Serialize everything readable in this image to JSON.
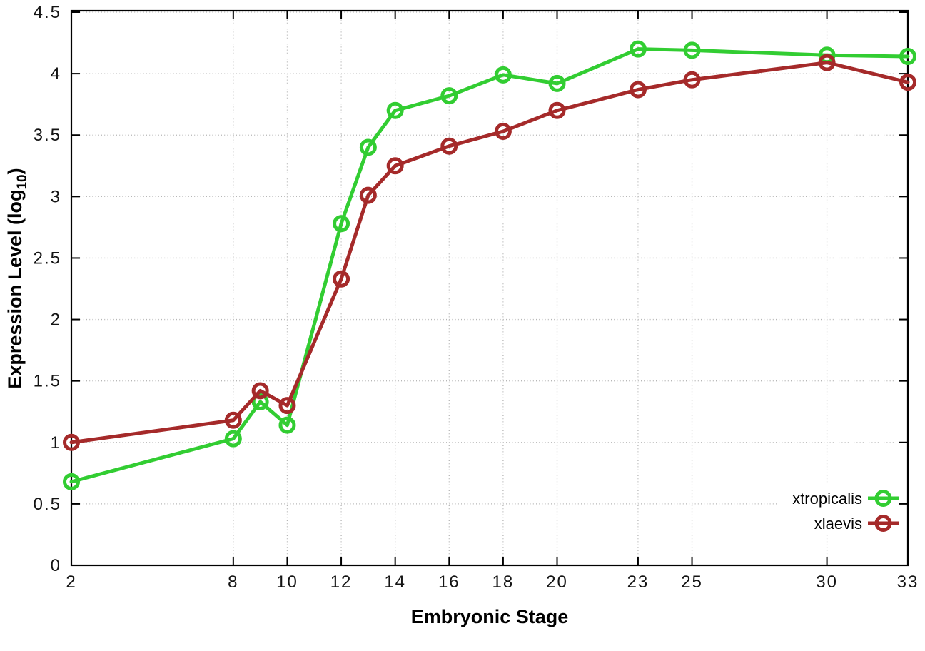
{
  "chart_data": {
    "type": "line",
    "title": "",
    "xlabel": "Embryonic Stage",
    "ylabel": "Expression Level (log10)",
    "ylabel_parts": {
      "pre": "Expression Level (log",
      "sub": "10",
      "post": ")"
    },
    "x": [
      2,
      8,
      9,
      10,
      12,
      13,
      14,
      16,
      18,
      20,
      23,
      25,
      30,
      33
    ],
    "xlim": [
      2,
      33
    ],
    "ylim": [
      0,
      4.54
    ],
    "xticks": [
      2,
      8,
      10,
      12,
      14,
      16,
      18,
      20,
      23,
      25,
      30,
      33
    ],
    "xtick_labels": [
      "2",
      "8",
      "10",
      "12",
      "14",
      "16",
      "18",
      "20",
      "23",
      "25",
      "30",
      "33"
    ],
    "yticks": [
      0,
      0.5,
      1,
      1.5,
      2,
      2.5,
      3,
      3.5,
      4,
      4.5
    ],
    "ytick_labels": [
      "0",
      "0.5",
      "1",
      "1.5",
      "2",
      "2.5",
      "3",
      "3.5",
      "4",
      "4.5"
    ],
    "grid": true,
    "grid_style": "dotted",
    "grid_color": "#b5b5b5",
    "frame_color": "#000000",
    "legend_position": "bottom-right-inside",
    "marker": "open-circle",
    "series": [
      {
        "name": "xtropicalis",
        "color": "#32cd32",
        "values": [
          0.68,
          1.03,
          1.33,
          1.14,
          2.78,
          3.4,
          3.7,
          3.82,
          3.99,
          3.92,
          4.2,
          4.19,
          4.15,
          4.14
        ]
      },
      {
        "name": "xlaevis",
        "color": "#a52a2a",
        "values": [
          1.0,
          1.18,
          1.42,
          1.3,
          2.33,
          3.01,
          3.25,
          3.41,
          3.53,
          3.7,
          3.87,
          3.95,
          4.09,
          3.93
        ]
      }
    ]
  }
}
